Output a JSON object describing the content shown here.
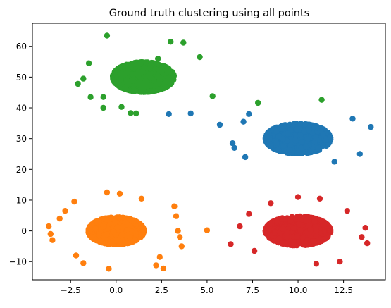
{
  "chart_data": {
    "type": "scatter",
    "title": "Ground truth clustering using all points",
    "xlabel": "",
    "ylabel": "",
    "xlim": [
      -4.6,
      14.8
    ],
    "ylim": [
      -15.9,
      67.5
    ],
    "xticks": [
      -2.5,
      0.0,
      2.5,
      5.0,
      7.5,
      10.0,
      12.5
    ],
    "xtick_labels": [
      "−2.5",
      "0.0",
      "2.5",
      "5.0",
      "7.5",
      "10.0",
      "12.5"
    ],
    "yticks": [
      -10,
      0,
      10,
      20,
      30,
      40,
      50,
      60
    ],
    "ytick_labels": [
      "−10",
      "0",
      "10",
      "20",
      "30",
      "40",
      "50",
      "60"
    ],
    "grid": false,
    "legend": "none",
    "series": [
      {
        "color": "#1f77b4",
        "center": [
          10,
          30
        ],
        "spread": [
          1.7,
          4.6
        ],
        "core_count": 1500,
        "outliers": [
          [
            5.7,
            34.5
          ],
          [
            6.4,
            28.5
          ],
          [
            6.5,
            27
          ],
          [
            7.0,
            35.5
          ],
          [
            7.1,
            24
          ],
          [
            7.3,
            38
          ],
          [
            12.0,
            22.5
          ],
          [
            13.4,
            25
          ],
          [
            14.0,
            33.8
          ],
          [
            2.9,
            38
          ],
          [
            4.1,
            38.2
          ],
          [
            13.0,
            36.5
          ]
        ]
      },
      {
        "color": "#ff7f0e",
        "center": [
          0,
          0
        ],
        "spread": [
          1.45,
          4.2
        ],
        "core_count": 1500,
        "outliers": [
          [
            -3.7,
            1.5
          ],
          [
            -3.6,
            -1
          ],
          [
            -3.5,
            -3
          ],
          [
            -3.1,
            4
          ],
          [
            -2.2,
            -8
          ],
          [
            -1.8,
            -10.5
          ],
          [
            -0.4,
            -12.3
          ],
          [
            2.2,
            -11.2
          ],
          [
            2.4,
            -8.5
          ],
          [
            3.2,
            8
          ],
          [
            3.3,
            4.8
          ],
          [
            3.4,
            0
          ],
          [
            3.5,
            -2
          ],
          [
            3.6,
            -5
          ],
          [
            5.0,
            0.2
          ],
          [
            -2.8,
            6.5
          ],
          [
            -2.3,
            9.5
          ],
          [
            -0.5,
            12.5
          ],
          [
            0.2,
            12.1
          ],
          [
            1.4,
            10.5
          ],
          [
            2.6,
            -12.2
          ]
        ]
      },
      {
        "color": "#2ca02c",
        "center": [
          1.5,
          50
        ],
        "spread": [
          1.6,
          4.6
        ],
        "core_count": 1500,
        "outliers": [
          [
            -0.5,
            63.5
          ],
          [
            -2.1,
            47.8
          ],
          [
            -1.8,
            49.5
          ],
          [
            -1.5,
            54.5
          ],
          [
            -1.4,
            43.5
          ],
          [
            -0.7,
            43.5
          ],
          [
            -0.7,
            40
          ],
          [
            0.3,
            40.3
          ],
          [
            0.8,
            38.3
          ],
          [
            1.1,
            38.2
          ],
          [
            2.3,
            56
          ],
          [
            3.0,
            61.5
          ],
          [
            3.7,
            61.2
          ],
          [
            4.6,
            56.5
          ],
          [
            5.3,
            43.8
          ],
          [
            7.8,
            41.6
          ],
          [
            11.3,
            42.6
          ]
        ]
      },
      {
        "color": "#d62728",
        "center": [
          10,
          0
        ],
        "spread": [
          1.7,
          4.5
        ],
        "core_count": 1500,
        "outliers": [
          [
            6.3,
            -4.3
          ],
          [
            6.8,
            1.5
          ],
          [
            7.3,
            5.5
          ],
          [
            7.6,
            -6.5
          ],
          [
            8.5,
            9
          ],
          [
            10.0,
            11
          ],
          [
            11.2,
            10.5
          ],
          [
            12.7,
            6.5
          ],
          [
            13.5,
            -2
          ],
          [
            13.7,
            1
          ],
          [
            13.8,
            -4
          ],
          [
            11.0,
            -10.7
          ],
          [
            12.3,
            -10
          ]
        ]
      }
    ]
  }
}
